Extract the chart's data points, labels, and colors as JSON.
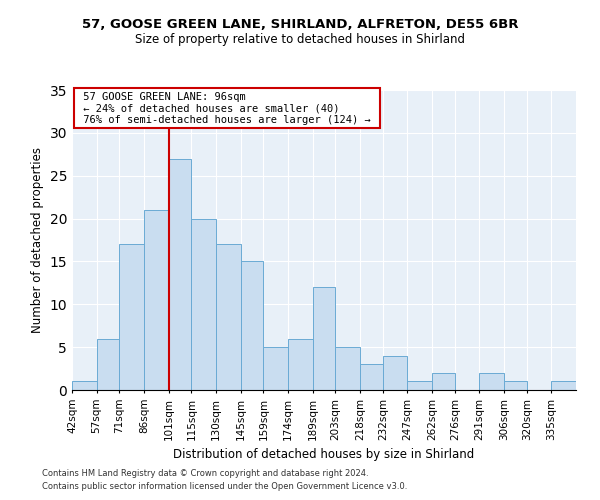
{
  "title1": "57, GOOSE GREEN LANE, SHIRLAND, ALFRETON, DE55 6BR",
  "title2": "Size of property relative to detached houses in Shirland",
  "xlabel": "Distribution of detached houses by size in Shirland",
  "ylabel": "Number of detached properties",
  "bar_labels": [
    "42sqm",
    "57sqm",
    "71sqm",
    "86sqm",
    "101sqm",
    "115sqm",
    "130sqm",
    "145sqm",
    "159sqm",
    "174sqm",
    "189sqm",
    "203sqm",
    "218sqm",
    "232sqm",
    "247sqm",
    "262sqm",
    "276sqm",
    "291sqm",
    "306sqm",
    "320sqm",
    "335sqm"
  ],
  "bar_values": [
    1,
    6,
    17,
    21,
    27,
    20,
    17,
    15,
    5,
    6,
    12,
    5,
    3,
    4,
    1,
    2,
    0,
    2,
    1,
    0,
    1
  ],
  "bar_color": "#c9ddf0",
  "bar_edgecolor": "#6aaad4",
  "annotation_text_line1": "57 GOOSE GREEN LANE: 96sqm",
  "annotation_text_line2": "← 24% of detached houses are smaller (40)",
  "annotation_text_line3": "76% of semi-detached houses are larger (124) →",
  "annotation_box_color": "#ffffff",
  "annotation_box_edgecolor": "#cc0000",
  "red_line_color": "#cc0000",
  "footer1": "Contains HM Land Registry data © Crown copyright and database right 2024.",
  "footer2": "Contains public sector information licensed under the Open Government Licence v3.0.",
  "ylim": [
    0,
    35
  ],
  "bg_color": "#e8f0f8",
  "bin_edges": [
    42,
    57,
    71,
    86,
    101,
    115,
    130,
    145,
    159,
    174,
    189,
    203,
    218,
    232,
    247,
    262,
    276,
    291,
    306,
    320,
    335,
    350
  ]
}
